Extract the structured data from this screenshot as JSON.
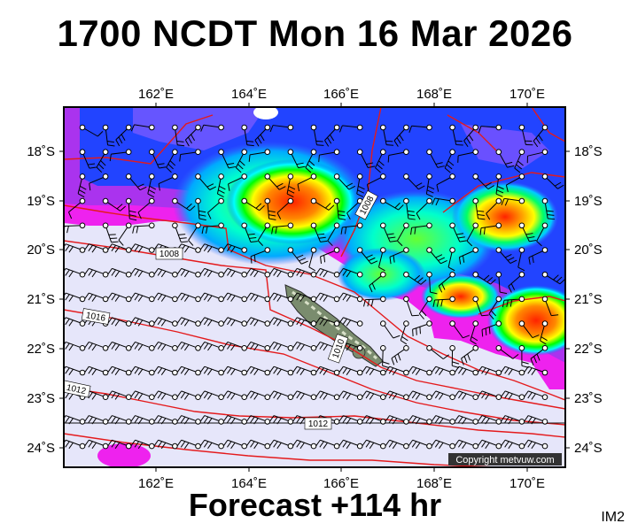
{
  "title": "1700 NCDT Mon 16 Mar 2026",
  "footer": "Forecast +114 hr",
  "tag": "IM2",
  "copyright": "Copyright metvuw.com",
  "axes": {
    "lon_ticks": [
      "162˚E",
      "164˚E",
      "166˚E",
      "168˚E",
      "170˚E"
    ],
    "lat_ticks": [
      "18˚S",
      "19˚S",
      "20˚S",
      "21˚S",
      "22˚S",
      "23˚S",
      "24˚S"
    ]
  },
  "isobar_labels": [
    "1008",
    "1008",
    "1010",
    "1016",
    "1012",
    "1012"
  ],
  "colors": {
    "background": "#e6e6fa",
    "isobar": "#e41a1c",
    "land": "#7a8c6e",
    "rain_scale": [
      "#0000ff",
      "#00aaff",
      "#00ffcc",
      "#00ff00",
      "#ffff00",
      "#ff8800",
      "#ff2200",
      "#ff00ff"
    ]
  }
}
